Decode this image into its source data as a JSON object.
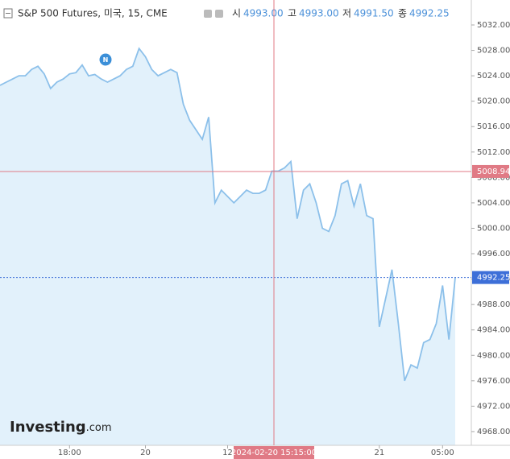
{
  "chart_data": {
    "type": "area",
    "title": "S&P 500 Futures, 미국, 15, CME",
    "ohlc": [
      {
        "label": "시",
        "value": "4993.00"
      },
      {
        "label": "고",
        "value": "4993.00"
      },
      {
        "label": "저",
        "value": "4991.50"
      },
      {
        "label": "종",
        "value": "4992.25"
      }
    ],
    "news_marker": "N",
    "logo": "Investing",
    "logo_suffix": ".com",
    "categories": [
      null,
      null,
      null,
      null,
      null,
      null,
      null,
      null,
      null,
      null,
      null,
      "18:00",
      null,
      null,
      null,
      null,
      null,
      null,
      null,
      null,
      null,
      null,
      null,
      "20",
      null,
      null,
      null,
      null,
      null,
      null,
      null,
      null,
      null,
      null,
      null,
      null,
      "12",
      null,
      null,
      null,
      null,
      null,
      null,
      null,
      null,
      null,
      null,
      null,
      null,
      null,
      null,
      null,
      null,
      null,
      null,
      null,
      null,
      null,
      null,
      null,
      "21",
      null,
      null,
      null,
      null,
      null,
      null,
      null,
      null,
      null,
      "05:00",
      null,
      null
    ],
    "series": [
      {
        "name": "S&P 500 Futures",
        "color": "#8cc0ea",
        "fill": "#e2f1fb",
        "values": [
          5022.5,
          5023,
          5023.5,
          5024,
          5024,
          5025,
          5025.5,
          5024.3,
          5022,
          5023,
          5023.5,
          5024.3,
          5024.5,
          5025.7,
          5024,
          5024.2,
          5023.5,
          5023,
          5023.5,
          5024,
          5025,
          5025.5,
          5028.3,
          5027,
          5025,
          5024,
          5024.5,
          5025,
          5024.5,
          5019.5,
          5017,
          5015.5,
          5014,
          5017.5,
          5004,
          5006,
          5005,
          5004,
          5005,
          5006,
          5005.5,
          5005.5,
          5006,
          5009,
          5009,
          5009.5,
          5010.5,
          5001.5,
          5006,
          5007,
          5004,
          5000,
          4999.5,
          5002,
          5007,
          5007.5,
          5003.5,
          5007,
          5002,
          5001.5,
          4984.5,
          4989,
          4993.5,
          4985,
          4976,
          4978.5,
          4978,
          4982,
          4982.5,
          4985,
          4991,
          4982.5,
          4992.25
        ]
      }
    ],
    "ylim": [
      4965.84,
      5035.93
    ],
    "yticks": [
      {
        "value": 4968,
        "label": "4968.00"
      },
      {
        "value": 4972,
        "label": "4972.00"
      },
      {
        "value": 4976,
        "label": "4976.00"
      },
      {
        "value": 4980,
        "label": "4980.00"
      },
      {
        "value": 4984,
        "label": "4984.00"
      },
      {
        "value": 4988,
        "label": "4988.00"
      },
      {
        "value": 4992,
        "label": "4992.00"
      },
      {
        "value": 4996,
        "label": "4996.00"
      },
      {
        "value": 5000,
        "label": "5000.00"
      },
      {
        "value": 5004,
        "label": "5004.00"
      },
      {
        "value": 5008,
        "label": "5008.00"
      },
      {
        "value": 5012,
        "label": "5012.00"
      },
      {
        "value": 5016,
        "label": "5016.00"
      },
      {
        "value": 5020,
        "label": "5020.00"
      },
      {
        "value": 5024,
        "label": "5024.00"
      },
      {
        "value": 5028,
        "label": "5028.00"
      },
      {
        "value": 5032,
        "label": "5032.00"
      }
    ],
    "last_price": {
      "value": 4992.25,
      "label": "4992.25",
      "color": "#3d6fd8"
    },
    "crosshair": {
      "y": {
        "value": 5008.94,
        "label": "5008.94"
      },
      "x_label": "2024-02-20 15:15:00",
      "color": "#e07a85"
    }
  }
}
